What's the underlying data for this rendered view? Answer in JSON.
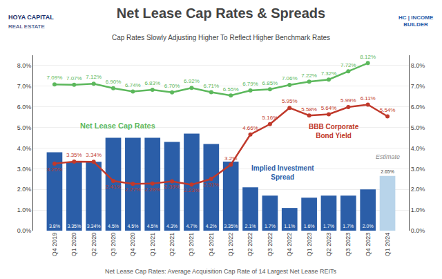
{
  "chart_data": {
    "type": "bar",
    "title": "Net Lease Cap Rates & Spreads",
    "subtitle": "Cap Rates Slowly Adjusting Higher To Reflect Higher Benchmark Rates",
    "footer": "Net Lease Cap Rates: Average Acquisition Cap Rate of 14 Largest Net Lease REITs",
    "categories": [
      "Q4 2019",
      "Q1 2020",
      "Q2 2020",
      "Q3 2020",
      "Q4 2020",
      "Q1 2021",
      "Q2 2021",
      "Q3 2021",
      "Q4 2021",
      "Q1 2022",
      "Q2 2022",
      "Q3 2022",
      "Q4 2022",
      "Q1 2023",
      "Q2 2023",
      "Q3 2023",
      "Q4 2023",
      "Q1 2024"
    ],
    "series": [
      {
        "name": "Implied Investment\nSpread",
        "type": "bar",
        "colors": [
          "#2b5ea8",
          "#2b5ea8",
          "#2b5ea8",
          "#2b5ea8",
          "#2b5ea8",
          "#2b5ea8",
          "#2b5ea8",
          "#2b5ea8",
          "#2b5ea8",
          "#2b5ea8",
          "#2b5ea8",
          "#2b5ea8",
          "#2b5ea8",
          "#2b5ea8",
          "#2b5ea8",
          "#2b5ea8",
          "#2b5ea8",
          "#b8d4ea"
        ],
        "values": [
          3.8,
          3.35,
          3.34,
          4.5,
          4.5,
          4.5,
          4.3,
          4.7,
          4.2,
          3.35,
          2.1,
          1.7,
          1.1,
          1.6,
          1.7,
          1.7,
          2.0,
          2.65
        ],
        "value_labels": [
          "3.8%",
          "3.35%",
          "3.34%",
          "4.5%",
          "4.5%",
          "4.5%",
          "4.3%",
          "4.7%",
          "4.2%",
          "3.35%",
          "2.1%",
          "1.7%",
          "1.1%",
          "1.6%",
          "1.7%",
          "1.7%",
          "2.0%",
          "2.65%"
        ]
      },
      {
        "name": "BBB Corporate\nBond Yield",
        "type": "line",
        "color": "#c0392b",
        "marker": "circle",
        "values": [
          3.25,
          3.35,
          3.34,
          2.41,
          2.27,
          2.28,
          2.39,
          2.23,
          2.51,
          3.2,
          4.66,
          5.16,
          5.95,
          5.58,
          5.64,
          5.99,
          6.11,
          5.54
        ],
        "value_labels": [
          "3.25%",
          "3.35%",
          "3.34%",
          "2.41%",
          "2.27%",
          "2.28%",
          "2.39%",
          "2.23%",
          "2.51%",
          "3.2%",
          "4.66%",
          "5.16%",
          "5.95%",
          "5.58%",
          "5.64%",
          "5.99%",
          "6.11%",
          "5.54%"
        ]
      },
      {
        "name": "Net Lease Cap Rates",
        "type": "line",
        "color": "#5cb85c",
        "marker": "circle",
        "values": [
          7.09,
          7.07,
          7.12,
          6.9,
          6.74,
          6.83,
          6.7,
          6.92,
          6.71,
          6.55,
          6.79,
          6.85,
          7.06,
          7.22,
          7.32,
          7.72,
          8.12,
          null
        ],
        "value_labels": [
          "7.09%",
          "7.07%",
          "7.12%",
          "6.90%",
          "6.74%",
          "6.83%",
          "6.70%",
          "6.92%",
          "6.71%",
          "6.55%",
          "6.79%",
          "6.85%",
          "7.06%",
          "7.22%",
          "7.32%",
          "7.72%",
          "8.12%",
          null
        ]
      }
    ],
    "annotations": [
      {
        "text": "Estimate",
        "x": "Q1 2024",
        "color": "#888888"
      },
      {
        "text": "HOYA CAPITAL",
        "color": "#1a2e6b"
      },
      {
        "text": "REAL ESTATE",
        "color": "#1a2e6b"
      },
      {
        "text": "HC | INCOME\nBUILDER",
        "color": "#2b5ea8"
      }
    ],
    "data_labels": true,
    "grid": true,
    "ylim": [
      0,
      8.5
    ],
    "yticks": [
      {
        "value": 0.0,
        "label": "0.0%"
      },
      {
        "value": 1.0,
        "label": "1.0%"
      },
      {
        "value": 2.0,
        "label": "2.0%"
      },
      {
        "value": 3.0,
        "label": "3.0%"
      },
      {
        "value": 4.0,
        "label": "4.0%"
      },
      {
        "value": 5.0,
        "label": "5.0%"
      },
      {
        "value": 6.0,
        "label": "6.0%"
      },
      {
        "value": 7.0,
        "label": "7.0%"
      },
      {
        "value": 8.0,
        "label": "8.0%"
      }
    ],
    "y2lim": [
      0,
      8.5
    ],
    "y2ticks": [
      {
        "value": 0.0,
        "label": "0.0%"
      },
      {
        "value": 1.0,
        "label": "1.0%"
      },
      {
        "value": 2.0,
        "label": "2.0%"
      },
      {
        "value": 3.0,
        "label": "3.0%"
      },
      {
        "value": 4.0,
        "label": "4.0%"
      },
      {
        "value": 5.0,
        "label": "5.0%"
      },
      {
        "value": 6.0,
        "label": "6.0%"
      },
      {
        "value": 7.0,
        "label": "7.0%"
      },
      {
        "value": 8.0,
        "label": "8.0%"
      }
    ]
  }
}
